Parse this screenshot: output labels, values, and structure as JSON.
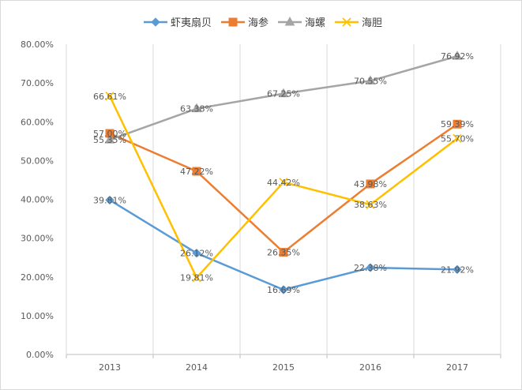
{
  "chart_data": {
    "type": "line",
    "categories": [
      "2013",
      "2014",
      "2015",
      "2016",
      "2017"
    ],
    "ylim": [
      0,
      80
    ],
    "y_ticks": [
      "0.00%",
      "10.00%",
      "20.00%",
      "30.00%",
      "40.00%",
      "50.00%",
      "60.00%",
      "70.00%",
      "80.00%"
    ],
    "grid": "vertical",
    "legend_position": "top",
    "series": [
      {
        "name": "虾夷扇贝",
        "color": "#5b9bd5",
        "marker": "diamond",
        "values": [
          39.81,
          26.12,
          16.69,
          22.38,
          21.92
        ],
        "labels": [
          "39.81%",
          "26.12%",
          "16.69%",
          "22.38%",
          "21.92%"
        ]
      },
      {
        "name": "海参",
        "color": "#ed7d31",
        "marker": "square",
        "values": [
          57.0,
          47.22,
          26.35,
          43.98,
          59.39
        ],
        "labels": [
          "57.00%",
          "47.22%",
          "26.35%",
          "43.98%",
          "59.39%"
        ]
      },
      {
        "name": "海螺",
        "color": "#a5a5a5",
        "marker": "triangle",
        "values": [
          55.35,
          63.38,
          67.25,
          70.55,
          76.92
        ],
        "labels": [
          "55.35%",
          "63.38%",
          "67.25%",
          "70.55%",
          "76.92%"
        ]
      },
      {
        "name": "海胆",
        "color": "#ffc000",
        "marker": "x",
        "values": [
          66.61,
          19.81,
          44.42,
          38.63,
          55.7
        ],
        "labels": [
          "66.61%",
          "19.81%",
          "44.42%",
          "38.63%",
          "55.70%"
        ]
      }
    ]
  }
}
